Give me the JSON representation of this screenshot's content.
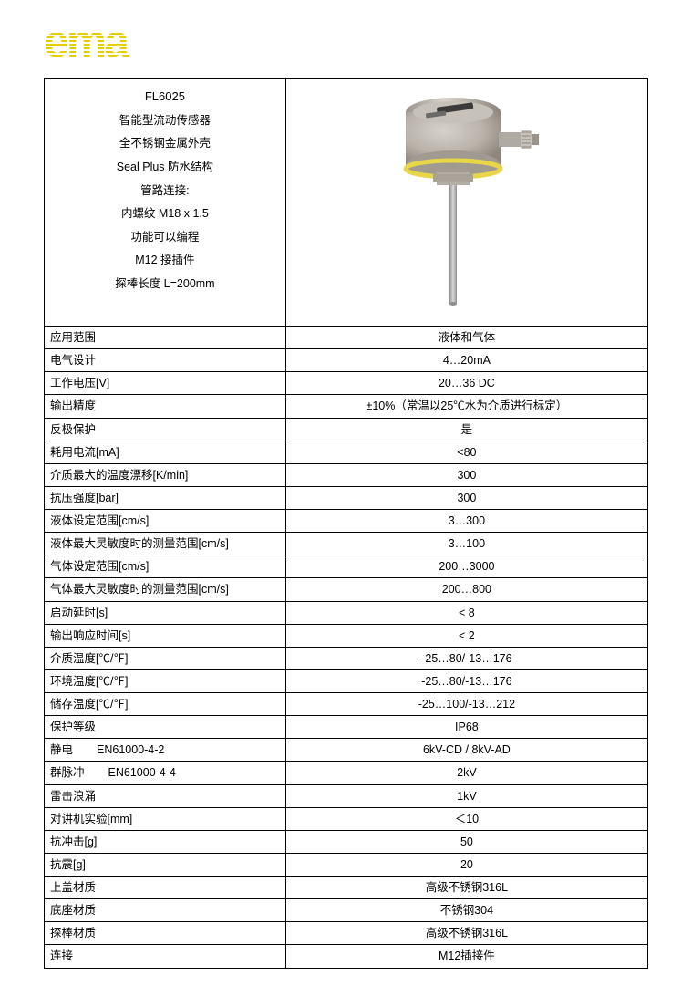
{
  "logo": {
    "text": "ema",
    "color": "#e3cf00",
    "stripe_color": "#e3cf00",
    "bg": "#ffffff"
  },
  "header": {
    "model": "FL6025",
    "lines": [
      "智能型流动传感器",
      "全不锈钢金属外壳",
      "Seal Plus 防水结构",
      "管路连接:",
      "内螺纹 M18 x 1.5",
      "功能可以编程",
      "M12 接插件",
      "探棒长度 L=200mm"
    ]
  },
  "product_image": {
    "body_color": "#b9b3aa",
    "body_highlight": "#d6d2ca",
    "body_shadow": "#8c867d",
    "ring_color": "#e8d649",
    "probe_color": "#a8a8a8",
    "connector_color": "#b0aba2",
    "display_color": "#3a3a3a"
  },
  "specs": [
    {
      "label": "应用范围",
      "value": "液体和气体"
    },
    {
      "label": "电气设计",
      "value": "4…20mA"
    },
    {
      "label": "工作电压[V]",
      "value": "20…36 DC"
    },
    {
      "label": "输出精度",
      "value": "±10%（常温以25℃水为介质进行标定）"
    },
    {
      "label": "反极保护",
      "value": "是"
    },
    {
      "label": "耗用电流[mA]",
      "value": "<80"
    },
    {
      "label": "介质最大的温度漂移[K/min]",
      "value": "300"
    },
    {
      "label": "抗压强度[bar]",
      "value": "300"
    },
    {
      "label": "液体设定范围[cm/s]",
      "value": "3…300"
    },
    {
      "label": "液体最大灵敏度时的测量范围[cm/s]",
      "value": "3…100"
    },
    {
      "label": "气体设定范围[cm/s]",
      "value": "200…3000"
    },
    {
      "label": "气体最大灵敏度时的测量范围[cm/s]",
      "value": "200…800"
    },
    {
      "label": "启动延时[s]",
      "value": "< 8"
    },
    {
      "label": "输出响应时间[s]",
      "value": "< 2"
    },
    {
      "label": "介质温度[℃/℉]",
      "value": "-25…80/-13…176"
    },
    {
      "label": "环境温度[℃/℉]",
      "value": "-25…80/-13…176"
    },
    {
      "label": "储存温度[℃/℉]",
      "value": "-25…100/-13…212"
    },
    {
      "label": "保护等级",
      "value": "IP68"
    },
    {
      "label": "静电",
      "std": "EN61000-4-2",
      "value": "6kV-CD / 8kV-AD"
    },
    {
      "label": "群脉冲",
      "std": "EN61000-4-4",
      "value": "2kV"
    },
    {
      "label": "雷击浪涌",
      "value": "1kV"
    },
    {
      "label": "对讲机实验[mm]",
      "value": "＜10"
    },
    {
      "label": "抗冲击[g]",
      "value": "50"
    },
    {
      "label": "抗震[g]",
      "value": "20"
    },
    {
      "label": "上盖材质",
      "value": "高级不锈钢316L"
    },
    {
      "label": "底座材质",
      "value": "不锈钢304"
    },
    {
      "label": "探棒材质",
      "value": "高级不锈钢316L"
    },
    {
      "label": "连接",
      "value": "M12插接件"
    }
  ]
}
